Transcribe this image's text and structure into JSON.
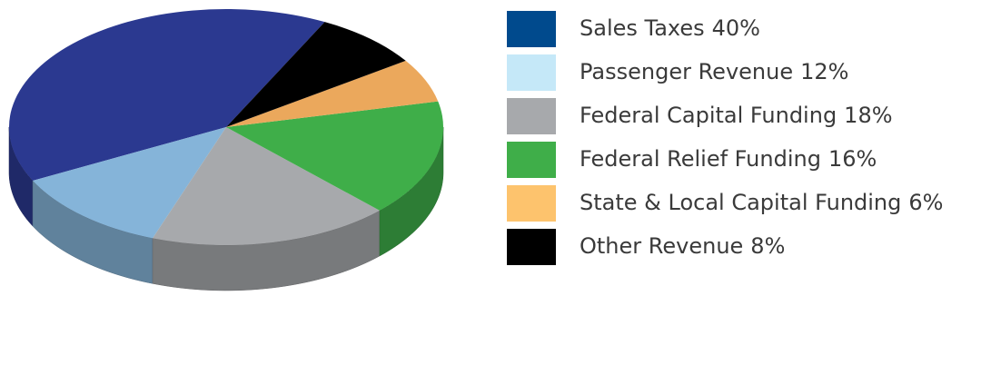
{
  "chart_data": {
    "type": "pie3d",
    "categories": [
      "Sales Taxes",
      "Passenger Revenue",
      "Federal Capital Funding",
      "Federal Relief Funding",
      "State & Local Capital Funding",
      "Other Revenue"
    ],
    "values": [
      40,
      12,
      18,
      16,
      6,
      8
    ],
    "value_labels": [
      "40%",
      "12%",
      "18%",
      "16%",
      "6%",
      "8%"
    ],
    "colors": [
      "#004a8d",
      "#c5e8f8",
      "#a7a9ac",
      "#3fae49",
      "#fdc36d",
      "#000000"
    ],
    "slice_colors": [
      "#2b3990",
      "#85b4d9",
      "#a7a9ac",
      "#3fae49",
      "#eba85c",
      "#000000"
    ],
    "legend": "right"
  }
}
